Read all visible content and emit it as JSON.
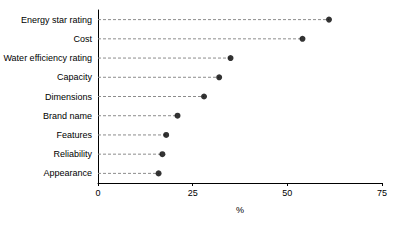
{
  "chart_data": {
    "type": "dot",
    "orientation": "horizontal",
    "categories": [
      "Energy star rating",
      "Cost",
      "Water efficiency rating",
      "Capacity",
      "Dimensions",
      "Brand name",
      "Features",
      "Reliability",
      "Appearance"
    ],
    "values": [
      61,
      54,
      35,
      32,
      28,
      21,
      18,
      17,
      16
    ],
    "color": "#000000",
    "marker": "circle",
    "line_style": "dashed",
    "xlabel": "%",
    "xlim": [
      0,
      75
    ],
    "xticks": [
      0,
      25,
      50,
      75
    ],
    "grid": false
  }
}
